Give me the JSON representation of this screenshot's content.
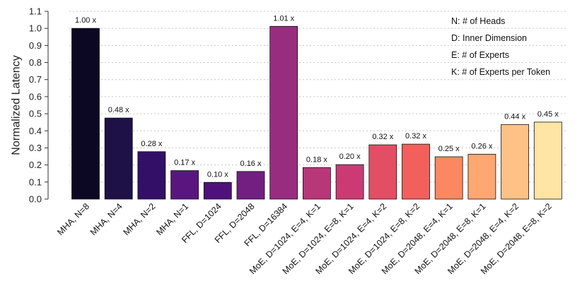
{
  "chart_data": {
    "type": "bar",
    "ylabel": "Normalized Latency",
    "ylim": [
      0,
      1.1
    ],
    "yticks": [
      "0.0",
      "0.1",
      "0.2",
      "0.3",
      "0.4",
      "0.5",
      "0.6",
      "0.7",
      "0.8",
      "0.9",
      "1.0",
      "1.1"
    ],
    "grid": "horizontal-dotted",
    "categories": [
      "MHA, N=8",
      "MHA, N=4",
      "MHA, N=2",
      "MHA, N=1",
      "FFL, D=1024",
      "FFL, D=2048",
      "FFL, D=16384",
      "MoE, D=1024, E=4, K=1",
      "MoE, D=1024, E=8, K=1",
      "MoE, D=1024, E=4, K=2",
      "MoE, D=1024, E=8, K=2",
      "MoE, D=2048, E=4, K=1",
      "MoE, D=2048, E=8, K=1",
      "MoE, D=2048, E=4, K=2",
      "MoE, D=2048, E=8, K=2"
    ],
    "values": [
      1.0,
      0.475,
      0.278,
      0.167,
      0.098,
      0.162,
      1.012,
      0.185,
      0.202,
      0.318,
      0.322,
      0.248,
      0.263,
      0.437,
      0.451
    ],
    "data_labels": [
      "1.00 x",
      "0.48 x",
      "0.28 x",
      "0.17 x",
      "0.10 x",
      "0.16 x",
      "1.01 x",
      "0.18 x",
      "0.20 x",
      "0.32 x",
      "0.32 x",
      "0.25 x",
      "0.26 x",
      "0.44 x",
      "0.45 x"
    ],
    "colors": [
      "#0c0824",
      "#1d1147",
      "#331067",
      "#5a167e",
      "#4f127b",
      "#721f81",
      "#982d80",
      "#b73779",
      "#cc3a73",
      "#e24f64",
      "#f2605c",
      "#fb8861",
      "#fea772",
      "#fec287",
      "#fee5a5"
    ],
    "legend_placement": "top-right",
    "legend": [
      "N: # of Heads",
      "D: Inner Dimension",
      "E: # of Experts",
      "K: # of Experts per Token"
    ]
  }
}
